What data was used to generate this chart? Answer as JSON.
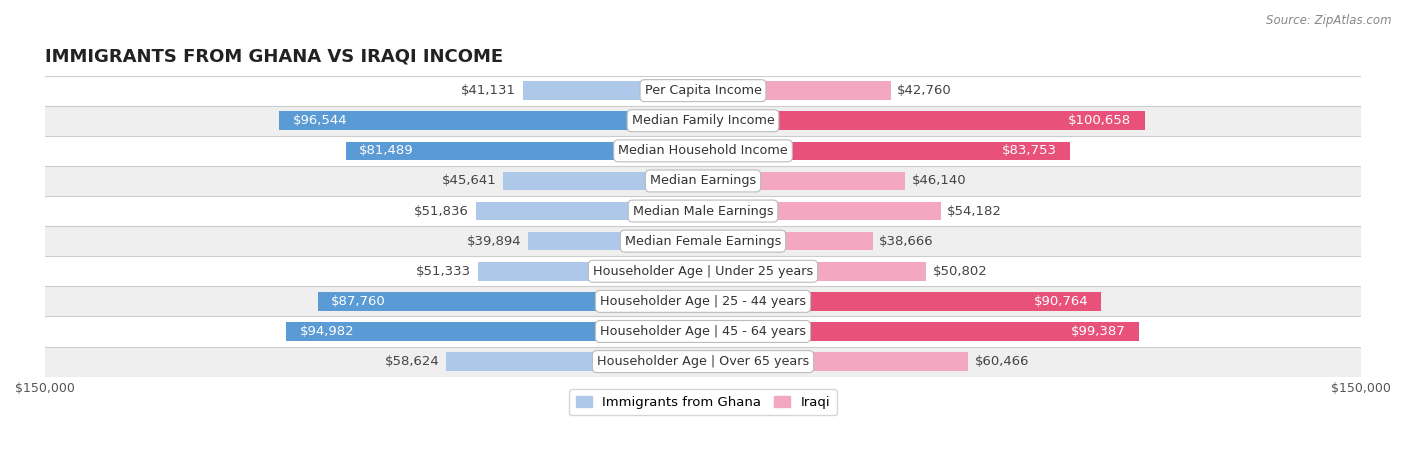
{
  "title": "IMMIGRANTS FROM GHANA VS IRAQI INCOME",
  "source": "Source: ZipAtlas.com",
  "categories": [
    "Per Capita Income",
    "Median Family Income",
    "Median Household Income",
    "Median Earnings",
    "Median Male Earnings",
    "Median Female Earnings",
    "Householder Age | Under 25 years",
    "Householder Age | 25 - 44 years",
    "Householder Age | 45 - 64 years",
    "Householder Age | Over 65 years"
  ],
  "ghana_values": [
    41131,
    96544,
    81489,
    45641,
    51836,
    39894,
    51333,
    87760,
    94982,
    58624
  ],
  "iraqi_values": [
    42760,
    100658,
    83753,
    46140,
    54182,
    38666,
    50802,
    90764,
    99387,
    60466
  ],
  "ghana_labels": [
    "$41,131",
    "$96,544",
    "$81,489",
    "$45,641",
    "$51,836",
    "$39,894",
    "$51,333",
    "$87,760",
    "$94,982",
    "$58,624"
  ],
  "iraqi_labels": [
    "$42,760",
    "$100,658",
    "$83,753",
    "$46,140",
    "$54,182",
    "$38,666",
    "$50,802",
    "$90,764",
    "$99,387",
    "$60,466"
  ],
  "ghana_color_light": "#adc8e8",
  "ghana_color_dark": "#5b9bd5",
  "iraqi_color_light": "#f4a7c0",
  "iraqi_color_dark": "#e8527a",
  "threshold": 70000,
  "xmax": 150000,
  "background_row_light": "#efefef",
  "background_row_white": "#ffffff",
  "bar_height": 0.62,
  "label_fontsize": 9.5,
  "title_fontsize": 13,
  "category_fontsize": 9.2,
  "legend_fontsize": 9.5
}
